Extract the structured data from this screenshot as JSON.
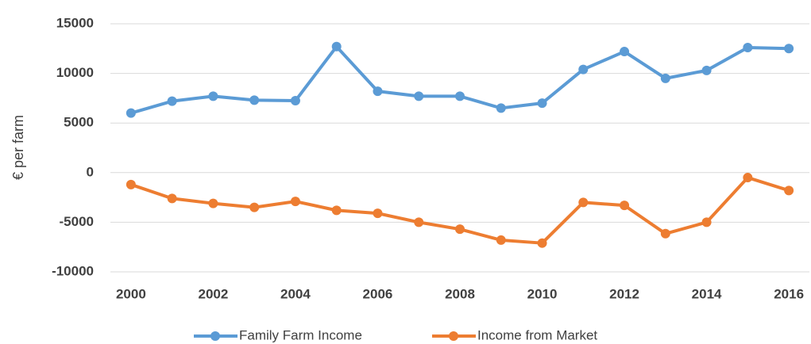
{
  "chart_data": {
    "type": "line",
    "y_label": "€ per farm",
    "x": [
      2000,
      2001,
      2002,
      2003,
      2004,
      2005,
      2006,
      2007,
      2008,
      2009,
      2010,
      2011,
      2012,
      2013,
      2014,
      2015,
      2016
    ],
    "series": [
      {
        "name": "Family Farm Income",
        "color": "#5b9bd5",
        "values": [
          6000,
          7200,
          7700,
          7300,
          7250,
          12700,
          8200,
          7700,
          7700,
          6500,
          7000,
          10400,
          12200,
          9500,
          10300,
          12600,
          12500
        ]
      },
      {
        "name": "Income from Market",
        "color": "#ed7d31",
        "values": [
          -1200,
          -2600,
          -3100,
          -3500,
          -2900,
          -3800,
          -4100,
          -5000,
          -5700,
          -6800,
          -7100,
          -3000,
          -3300,
          -6150,
          -5000,
          -500,
          -1800
        ]
      }
    ],
    "xlim": [
      1999.5,
      2016.5
    ],
    "xticks": [
      2000,
      2002,
      2004,
      2006,
      2008,
      2010,
      2012,
      2014,
      2016
    ],
    "ylim": [
      -10000,
      15000
    ],
    "yticks": [
      -10000,
      -5000,
      0,
      5000,
      10000,
      15000
    ],
    "grid": true,
    "legend": "bottom"
  }
}
